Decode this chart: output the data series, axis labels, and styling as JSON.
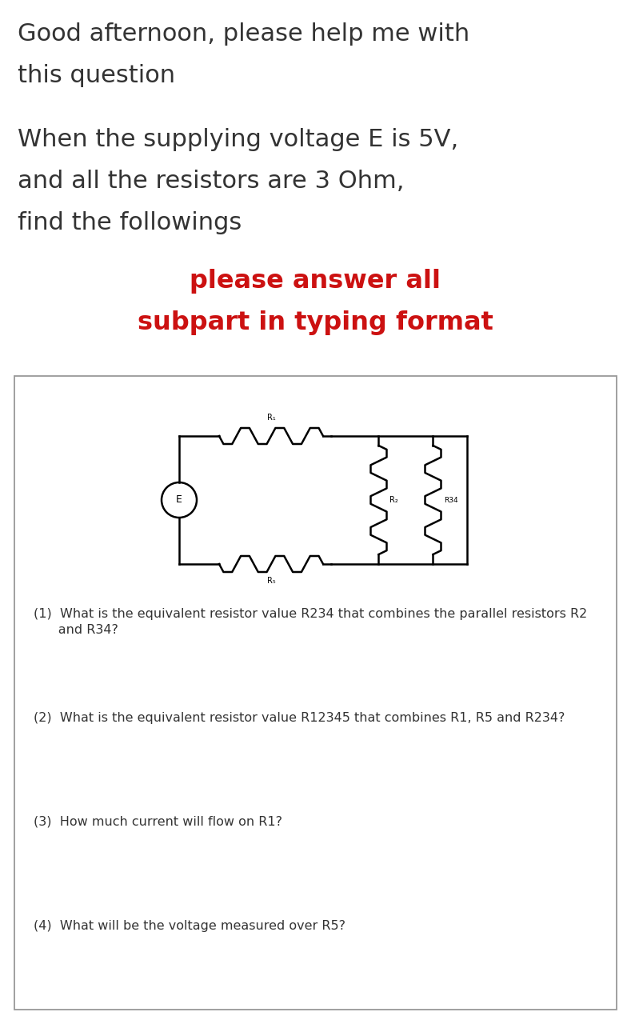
{
  "title_line1": "Good afternoon, please help me with",
  "title_line2": "this question",
  "subtitle_line1": "When the supplying voltage E is 5V,",
  "subtitle_line2": "and all the resistors are 3 Ohm,",
  "subtitle_line3": "find the followings",
  "red_text_line1": "please answer all",
  "red_text_line2": "subpart in typing format",
  "q1a": "(1)  What is the equivalent resistor value R234 that combines the parallel resistors R2",
  "q1b": "      and R34?",
  "q2": "(2)  What is the equivalent resistor value R12345 that combines R1, R5 and R234?",
  "q3": "(3)  How much current will flow on R1?",
  "q4": "(4)  What will be the voltage measured over R5?",
  "bg_color": "#ffffff",
  "text_color": "#333333",
  "red_color": "#cc1111",
  "box_border": "#999999",
  "title_fontsize": 22,
  "subtitle_fontsize": 22,
  "red_fontsize": 23,
  "q_fontsize": 11.5
}
